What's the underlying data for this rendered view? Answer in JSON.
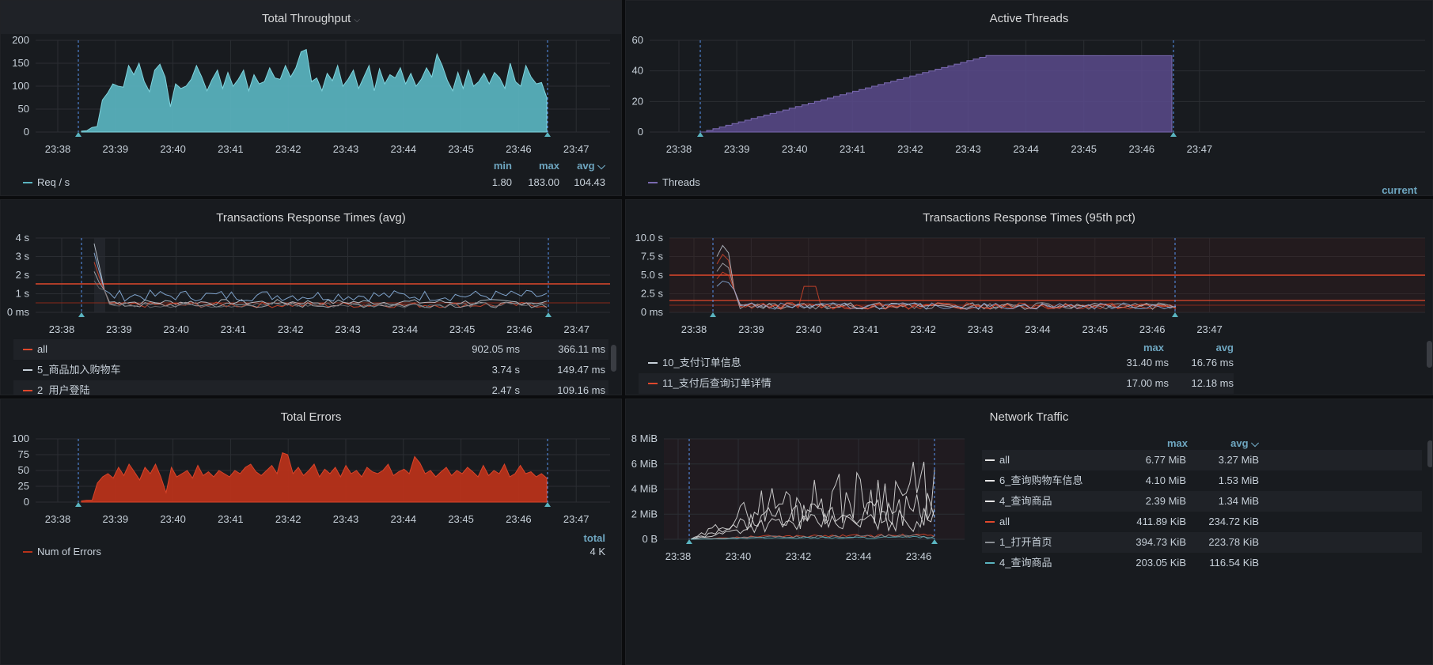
{
  "panels": {
    "throughput": {
      "title": "Total Throughput",
      "legend_headers": [
        "min",
        "max",
        "avg"
      ],
      "legend": [
        {
          "name": "Req / s",
          "values": [
            "1.80",
            "183.00",
            "104.43"
          ],
          "color": "#5ab4c0"
        }
      ]
    },
    "threads": {
      "title": "Active Threads",
      "legend_headers": [
        "current"
      ],
      "legend": [
        {
          "name": "Threads",
          "color": "#7a6ab0"
        }
      ]
    },
    "resp_avg": {
      "title": "Transactions Response Times (avg)",
      "legend": [
        {
          "name": "all",
          "values": [
            "902.05 ms",
            "366.11 ms"
          ],
          "color": "#e0482c"
        },
        {
          "name": "5_商品加入购物车",
          "values": [
            "3.74 s",
            "149.47 ms"
          ],
          "color": "#c7d0d9"
        },
        {
          "name": "2_用户登陆",
          "values": [
            "2.47 s",
            "109.16 ms"
          ],
          "color": "#e0482c"
        }
      ]
    },
    "resp_95": {
      "title": "Transactions Response Times (95th pct)",
      "legend_headers": [
        "max",
        "avg"
      ],
      "legend": [
        {
          "name": "10_支付订单信息",
          "values": [
            "31.40 ms",
            "16.76 ms"
          ],
          "color": "#c7d0d9"
        },
        {
          "name": "11_支付后查询订单详情",
          "values": [
            "17.00 ms",
            "12.18 ms"
          ],
          "color": "#e0482c"
        }
      ]
    },
    "errors": {
      "title": "Total Errors",
      "legend_headers": [
        "total"
      ],
      "legend": [
        {
          "name": "Num of Errors",
          "values": [
            "4 K"
          ],
          "color": "#b7321a"
        }
      ]
    },
    "network": {
      "title": "Network Traffic",
      "legend_headers": [
        "max",
        "avg"
      ],
      "legend": [
        {
          "name": "all",
          "values": [
            "6.77 MiB",
            "3.27 MiB"
          ],
          "color": "#e6e6e6"
        },
        {
          "name": "6_查询购物车信息",
          "values": [
            "4.10 MiB",
            "1.53 MiB"
          ],
          "color": "#e6e6e6"
        },
        {
          "name": "4_查询商品",
          "values": [
            "2.39 MiB",
            "1.34 MiB"
          ],
          "color": "#e6e6e6"
        },
        {
          "name": "all",
          "values": [
            "411.89 KiB",
            "234.72 KiB"
          ],
          "color": "#e0482c"
        },
        {
          "name": "1_打开首页",
          "values": [
            "394.73 KiB",
            "223.78 KiB"
          ],
          "color": "#8a8e94"
        },
        {
          "name": "4_查询商品",
          "values": [
            "203.05 KiB",
            "116.54 KiB"
          ],
          "color": "#5ab4c0"
        }
      ]
    }
  },
  "time_ticks": [
    "23:38",
    "23:39",
    "23:40",
    "23:41",
    "23:42",
    "23:43",
    "23:44",
    "23:45",
    "23:46",
    "23:47"
  ],
  "network_time_ticks": [
    "23:38",
    "23:40",
    "23:42",
    "23:44",
    "23:46"
  ],
  "chart_data": [
    {
      "type": "area",
      "title": "Total Throughput",
      "x_range": [
        "23:38",
        "23:47"
      ],
      "ylim": [
        0,
        200
      ],
      "yticks": [
        "0",
        "50",
        "100",
        "150",
        "200"
      ],
      "series": [
        {
          "name": "Req / s",
          "values": [
            2,
            3,
            10,
            12,
            70,
            85,
            105,
            100,
            98,
            145,
            125,
            150,
            110,
            88,
            135,
            148,
            120,
            55,
            105,
            95,
            100,
            115,
            145,
            120,
            90,
            115,
            135,
            95,
            130,
            100,
            115,
            135,
            90,
            125,
            105,
            110,
            140,
            118,
            115,
            145,
            120,
            140,
            175,
            180,
            110,
            118,
            90,
            128,
            112,
            145,
            100,
            115,
            135,
            95,
            120,
            145,
            90,
            138,
            105,
            125,
            118,
            140,
            105,
            128,
            100,
            115,
            140,
            120,
            170,
            145,
            112,
            90,
            130,
            95,
            135,
            100,
            110,
            128,
            105,
            130,
            118,
            95,
            150,
            110,
            100,
            145,
            120,
            105,
            108,
            75
          ]
        }
      ]
    },
    {
      "type": "area",
      "title": "Active Threads",
      "ylim": [
        0,
        60
      ],
      "yticks": [
        "0",
        "20",
        "40",
        "60"
      ],
      "series": [
        {
          "name": "Threads",
          "values": [
            0,
            50,
            50
          ]
        }
      ]
    },
    {
      "type": "line",
      "title": "Transactions Response Times (avg)",
      "yticks": [
        "0 ms",
        "1 s",
        "2 s",
        "3 s",
        "4 s"
      ],
      "ylim": [
        0,
        4
      ]
    },
    {
      "type": "line",
      "title": "Transactions Response Times (95th pct)",
      "yticks": [
        "0 ms",
        "2.5 s",
        "5.0 s",
        "7.5 s",
        "10.0 s"
      ],
      "ylim": [
        0,
        10
      ]
    },
    {
      "type": "area",
      "title": "Total Errors",
      "ylim": [
        0,
        100
      ],
      "yticks": [
        "0",
        "25",
        "50",
        "75",
        "100"
      ],
      "series": [
        {
          "name": "Num of Errors",
          "values": [
            2,
            3,
            3,
            30,
            40,
            45,
            38,
            55,
            42,
            60,
            48,
            35,
            55,
            45,
            60,
            40,
            15,
            55,
            40,
            45,
            50,
            38,
            58,
            42,
            48,
            40,
            50,
            45,
            40,
            50,
            45,
            55,
            60,
            48,
            42,
            50,
            58,
            45,
            78,
            75,
            45,
            55,
            42,
            50,
            60,
            40,
            52,
            45,
            55,
            40,
            58,
            45,
            50,
            40,
            55,
            48,
            45,
            50,
            60,
            42,
            48,
            52,
            45,
            72,
            62,
            45,
            50,
            40,
            48,
            55,
            42,
            50,
            45,
            55,
            48,
            40,
            58,
            42,
            50,
            45,
            60,
            40,
            45,
            58,
            45,
            48,
            40,
            45,
            38
          ]
        }
      ]
    },
    {
      "type": "line",
      "title": "Network Traffic",
      "yticks": [
        "0 B",
        "2 MiB",
        "4 MiB",
        "6 MiB",
        "8 MiB"
      ],
      "ylim": [
        0,
        8
      ]
    }
  ]
}
